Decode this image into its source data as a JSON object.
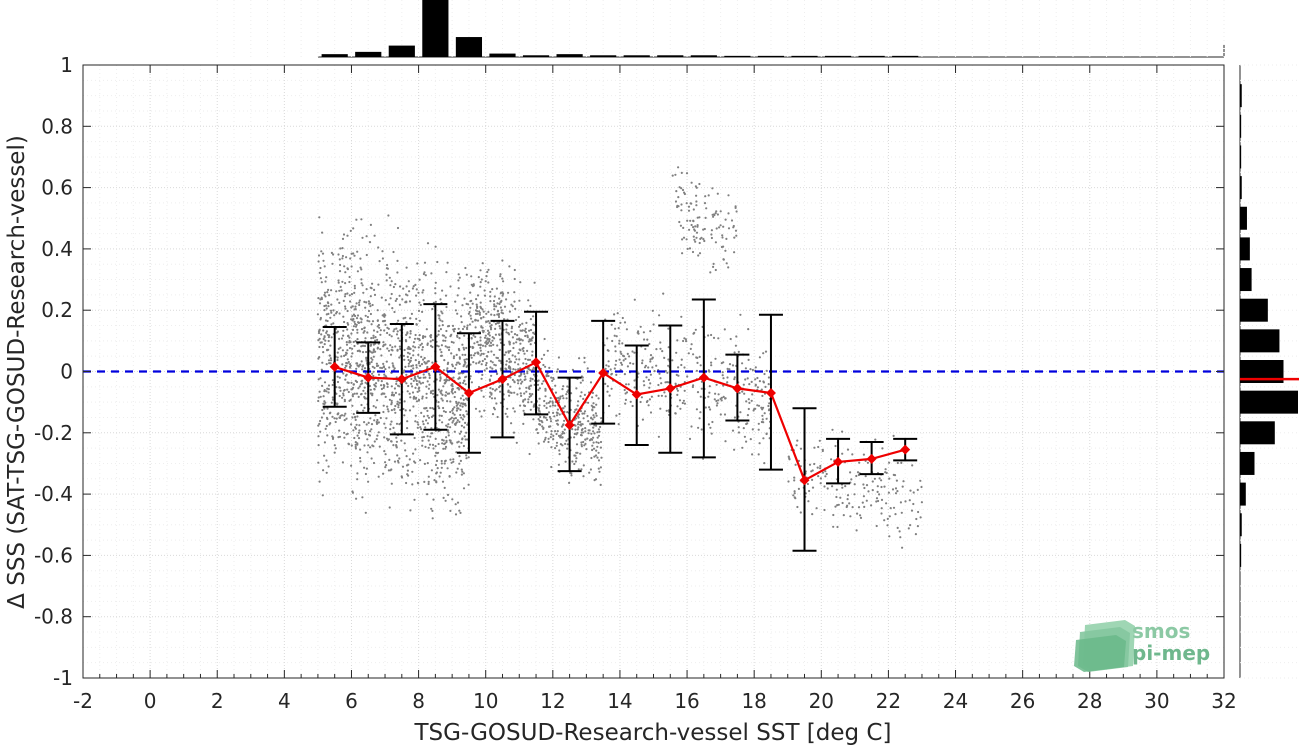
{
  "chart_data": [
    {
      "type": "scatter",
      "role": "main",
      "xlabel": "TSG-GOSUD-Research-vessel SST [deg C]",
      "ylabel": "Δ SSS (SAT-TSG-GOSUD-Research-vessel)",
      "xlim": [
        -2,
        32
      ],
      "ylim": [
        -1,
        1
      ],
      "xticks": [
        -2,
        0,
        2,
        4,
        6,
        8,
        10,
        12,
        14,
        16,
        18,
        20,
        22,
        24,
        26,
        28,
        30,
        32
      ],
      "yticks": [
        -1,
        -0.8,
        -0.6,
        -0.4,
        -0.2,
        0,
        0.2,
        0.4,
        0.6,
        0.8,
        1
      ],
      "grid": true,
      "zero_line": {
        "y": 0,
        "color": "#0000dd",
        "style": "dashed"
      },
      "scatter_color": "#808080",
      "mean_color": "#ee0000",
      "errorbar_color": "#000000",
      "binned_mean": {
        "x": [
          5.5,
          6.5,
          7.5,
          8.5,
          9.5,
          10.5,
          11.5,
          12.5,
          13.5,
          14.5,
          15.5,
          16.5,
          17.5,
          18.5,
          19.5,
          20.5,
          21.5,
          22.5
        ],
        "y": [
          0.015,
          -0.02,
          -0.025,
          0.015,
          -0.07,
          -0.025,
          0.03,
          -0.175,
          -0.005,
          -0.075,
          -0.055,
          -0.02,
          -0.055,
          -0.07,
          -0.355,
          -0.295,
          -0.285,
          -0.255
        ],
        "err_low": [
          -0.115,
          -0.135,
          -0.205,
          -0.19,
          -0.265,
          -0.215,
          -0.14,
          -0.325,
          -0.17,
          -0.24,
          -0.265,
          -0.28,
          -0.16,
          -0.32,
          -0.585,
          -0.365,
          -0.335,
          -0.29
        ],
        "err_high": [
          0.145,
          0.095,
          0.155,
          0.22,
          0.125,
          0.165,
          0.195,
          -0.02,
          0.165,
          0.085,
          0.15,
          0.235,
          0.055,
          0.185,
          -0.12,
          -0.22,
          -0.23,
          -0.22
        ]
      },
      "scatter_clusters": [
        {
          "x": [
            5.0,
            9.5
          ],
          "y": [
            -0.55,
            0.55
          ],
          "n": 1500
        },
        {
          "x": [
            9.5,
            11.5
          ],
          "y": [
            -0.25,
            0.4
          ],
          "n": 500
        },
        {
          "x": [
            11.5,
            13.5
          ],
          "y": [
            -0.4,
            0.1
          ],
          "n": 350
        },
        {
          "x": [
            13.5,
            18.5
          ],
          "y": [
            -0.3,
            0.25
          ],
          "n": 400
        },
        {
          "x": [
            15.5,
            17.5
          ],
          "y": [
            0.3,
            0.7
          ],
          "n": 120
        },
        {
          "x": [
            19,
            23
          ],
          "y": [
            -0.6,
            -0.15
          ],
          "n": 200
        }
      ]
    },
    {
      "type": "bar",
      "role": "top-histogram",
      "orientation": "vertical",
      "x": [
        5.5,
        6.5,
        7.5,
        8.5,
        9.5,
        10.5,
        11.5,
        12.5,
        13.5,
        14.5,
        15.5,
        16.5,
        17.5,
        18.5,
        19.5,
        20.5,
        21.5,
        22.5
      ],
      "values": [
        0.05,
        0.09,
        0.2,
        1.0,
        0.35,
        0.06,
        0.03,
        0.05,
        0.03,
        0.03,
        0.03,
        0.03,
        0.02,
        0.02,
        0.02,
        0.02,
        0.02,
        0.02
      ]
    },
    {
      "type": "bar",
      "role": "right-histogram",
      "orientation": "horizontal",
      "y": [
        0.9,
        0.8,
        0.7,
        0.6,
        0.5,
        0.4,
        0.3,
        0.2,
        0.1,
        0.0,
        -0.1,
        -0.2,
        -0.3,
        -0.4,
        -0.5,
        -0.6
      ],
      "values": [
        0.03,
        0.02,
        0.02,
        0.03,
        0.12,
        0.17,
        0.2,
        0.48,
        0.68,
        0.75,
        1.0,
        0.6,
        0.25,
        0.1,
        0.03,
        0.02
      ],
      "mean_marker": {
        "y": -0.025,
        "color": "#ee0000"
      }
    }
  ],
  "logo": {
    "line1": "smos",
    "line2": "pi-mep",
    "color": "#7fbf9a"
  }
}
